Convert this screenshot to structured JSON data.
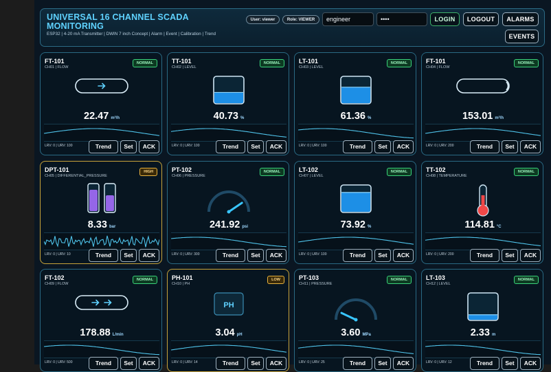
{
  "header": {
    "title": "UNIVERSAL 16 CHANNEL SCADA MONITORING",
    "subtitle": "ESP32 | 4-20 mA Transmitter | DWIN 7 inch Concept | Alarm | Event | Calibration | Trend",
    "user_pill": "User: viewer",
    "role_pill": "Role: VIEWER",
    "username_value": "engineer",
    "password_value": "••••",
    "login_label": "LOGIN",
    "logout_label": "LOGOUT",
    "alarms_label": "ALARMS",
    "events_label": "EVENTS"
  },
  "card_buttons": {
    "trend": "Trend",
    "set": "Set",
    "ack": "ACK"
  },
  "colors": {
    "accent": "#5fd2ff",
    "normal": "#3ad37a",
    "warn": "#e8b33f",
    "trend_line": "#4fc3ea"
  },
  "cards": [
    {
      "tag": "FT-101",
      "sub": "CH01 | FLOW",
      "status": "NORMAL",
      "value": "22.47",
      "unit": "m³/h",
      "range": "LRV: 0 | URV: 100",
      "visual": "flow-pipe-icon",
      "level": 0.22
    },
    {
      "tag": "TT-101",
      "sub": "CH02 | LEVEL",
      "status": "NORMAL",
      "value": "40.73",
      "unit": "%",
      "range": "LRV: 0 | URV: 100",
      "visual": "tank-icon",
      "level": 0.41
    },
    {
      "tag": "LT-101",
      "sub": "CH03 | LEVEL",
      "status": "NORMAL",
      "value": "61.36",
      "unit": "%",
      "range": "LRV: 0 | URV: 100",
      "visual": "tank-icon",
      "level": 0.61
    },
    {
      "tag": "FT-101",
      "sub": "CH04 | FLOW",
      "status": "NORMAL",
      "value": "153.01",
      "unit": "m³/h",
      "range": "LRV: 0 | URV: 200",
      "visual": "flow-pipe-icon",
      "level": 0.77
    },
    {
      "tag": "DPT-101",
      "sub": "CH05 | DIFFERENTIAL_PRESSURE",
      "status": "HIGH",
      "value": "8.33",
      "unit": "bar",
      "range": "LRV: 0 | URV: 10",
      "visual": "dp-cells-icon",
      "level": 0.83
    },
    {
      "tag": "PT-102",
      "sub": "CH06 | PRESSURE",
      "status": "NORMAL",
      "value": "241.92",
      "unit": "psi",
      "range": "LRV: 0 | URV: 300",
      "visual": "gauge-icon",
      "level": 0.81
    },
    {
      "tag": "LT-102",
      "sub": "CH07 | LEVEL",
      "status": "NORMAL",
      "value": "73.92",
      "unit": "%",
      "range": "LRV: 0 | URV: 100",
      "visual": "tank-icon",
      "level": 0.74
    },
    {
      "tag": "TT-102",
      "sub": "CH08 | TEMPERATURE",
      "status": "NORMAL",
      "value": "114.81",
      "unit": "°C",
      "range": "LRV: 0 | URV: 200",
      "visual": "thermometer-icon",
      "level": 0.57
    },
    {
      "tag": "FT-102",
      "sub": "CH09 | FLOW",
      "status": "NORMAL",
      "value": "178.88",
      "unit": "L/min",
      "range": "LRV: 0 | URV: 500",
      "visual": "flow-pipe-icon",
      "level": 0.36
    },
    {
      "tag": "PH-101",
      "sub": "CH10 | PH",
      "status": "LOW",
      "value": "3.04",
      "unit": "pH",
      "range": "LRV: 0 | URV: 14",
      "visual": "ph-box-icon",
      "level": 0.22,
      "ph_label": "PH"
    },
    {
      "tag": "PT-103",
      "sub": "CH11 | PRESSURE",
      "status": "NORMAL",
      "value": "3.60",
      "unit": "MPa",
      "range": "LRV: 0 | URV: 25",
      "visual": "gauge-icon",
      "level": 0.14
    },
    {
      "tag": "LT-103",
      "sub": "CH12 | LEVEL",
      "status": "NORMAL",
      "value": "2.33",
      "unit": "m",
      "range": "LRV: 0 | URV: 12",
      "visual": "tank-icon",
      "level": 0.19
    }
  ]
}
